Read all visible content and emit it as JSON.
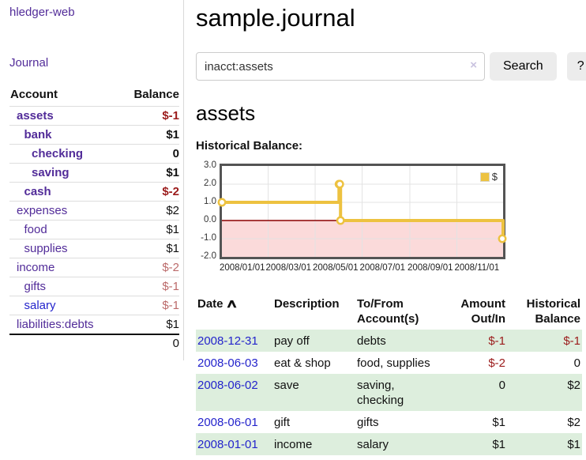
{
  "app": {
    "title": "hledger-web",
    "nav_journal": "Journal"
  },
  "colors": {
    "accent_purple": "#522c99",
    "link_blue": "#2424cc",
    "negative": "#9b1b1b",
    "negative_soft": "#bb6a6a",
    "row_green": "#ddeedd",
    "series_gold": "#edc240",
    "negative_region": "#fbdada",
    "zero_line": "#8b0000",
    "chart_border": "#545454",
    "grid_line": "#e3e3e3"
  },
  "sidebar": {
    "header": {
      "account": "Account",
      "balance": "Balance"
    },
    "accounts": [
      {
        "name": "assets",
        "balance": "$-1",
        "indent": 0,
        "bold": true,
        "name_color": "purple",
        "balance_color": "neg"
      },
      {
        "name": "bank",
        "balance": "$1",
        "indent": 1,
        "bold": true,
        "name_color": "purple",
        "balance_color": "black"
      },
      {
        "name": "checking",
        "balance": "0",
        "indent": 2,
        "bold": true,
        "name_color": "purple",
        "balance_color": "black"
      },
      {
        "name": "saving",
        "balance": "$1",
        "indent": 2,
        "bold": true,
        "name_color": "purple",
        "balance_color": "black"
      },
      {
        "name": "cash",
        "balance": "$-2",
        "indent": 1,
        "bold": true,
        "name_color": "purple",
        "balance_color": "neg"
      },
      {
        "name": "expenses",
        "balance": "$2",
        "indent": 0,
        "bold": false,
        "name_color": "purple",
        "balance_color": "black"
      },
      {
        "name": "food",
        "balance": "$1",
        "indent": 1,
        "bold": false,
        "name_color": "purple",
        "balance_color": "black"
      },
      {
        "name": "supplies",
        "balance": "$1",
        "indent": 1,
        "bold": false,
        "name_color": "purple",
        "balance_color": "black"
      },
      {
        "name": "income",
        "balance": "$-2",
        "indent": 0,
        "bold": false,
        "name_color": "purple",
        "balance_color": "rose"
      },
      {
        "name": "gifts",
        "balance": "$-1",
        "indent": 1,
        "bold": false,
        "name_color": "purple",
        "balance_color": "rose"
      },
      {
        "name": "salary",
        "balance": "$-1",
        "indent": 1,
        "bold": false,
        "name_color": "blue",
        "balance_color": "rose"
      },
      {
        "name": "liabilities:debts",
        "balance": "$1",
        "indent": 0,
        "bold": false,
        "name_color": "purple",
        "balance_color": "black"
      }
    ],
    "total": "0"
  },
  "main": {
    "title": "sample.journal",
    "search": {
      "value": "inacct:assets",
      "clear": "×",
      "button": "Search",
      "help": "?"
    },
    "account_heading": "assets",
    "chart_label": "Historical Balance:"
  },
  "chart_data": {
    "type": "line",
    "step": true,
    "title": "Historical Balance",
    "legend": "$",
    "legend_position": "top-right",
    "grid": true,
    "ylim": [
      -2,
      3
    ],
    "yticks": [
      "3.0",
      "2.0",
      "1.0",
      "0.0",
      "-1.0",
      "-2.0"
    ],
    "xrange": [
      "2008-01-01",
      "2008-12-31"
    ],
    "xticks": [
      {
        "date": "2008-01-01",
        "label": "2008/01/01"
      },
      {
        "date": "2008-03-01",
        "label": "2008/03/01"
      },
      {
        "date": "2008-05-01",
        "label": "2008/05/01"
      },
      {
        "date": "2008-07-01",
        "label": "2008/07/01"
      },
      {
        "date": "2008-09-01",
        "label": "2008/09/01"
      },
      {
        "date": "2008-11-01",
        "label": "2008/11/01"
      }
    ],
    "series": [
      {
        "name": "$",
        "color": "#edc240",
        "points": [
          {
            "date": "2008-01-01",
            "value": 1
          },
          {
            "date": "2008-06-01",
            "value": 2
          },
          {
            "date": "2008-06-02",
            "value": 2
          },
          {
            "date": "2008-06-03",
            "value": 0
          },
          {
            "date": "2008-12-31",
            "value": -1
          }
        ]
      }
    ]
  },
  "register": {
    "headers": [
      "Date",
      "Description",
      "To/From Account(s)",
      "Amount Out/In",
      "Historical Balance"
    ],
    "sort_indicator": "∧",
    "rows": [
      {
        "date": "2008-12-31",
        "description": "pay off",
        "accounts": "debts",
        "amount": "$-1",
        "balance": "$-1"
      },
      {
        "date": "2008-06-03",
        "description": "eat & shop",
        "accounts": "food, supplies",
        "amount": "$-2",
        "balance": "0"
      },
      {
        "date": "2008-06-02",
        "description": "save",
        "accounts": "saving, checking",
        "amount": "0",
        "balance": "$2"
      },
      {
        "date": "2008-06-01",
        "description": "gift",
        "accounts": "gifts",
        "amount": "$1",
        "balance": "$2"
      },
      {
        "date": "2008-01-01",
        "description": "income",
        "accounts": "salary",
        "amount": "$1",
        "balance": "$1"
      }
    ]
  }
}
